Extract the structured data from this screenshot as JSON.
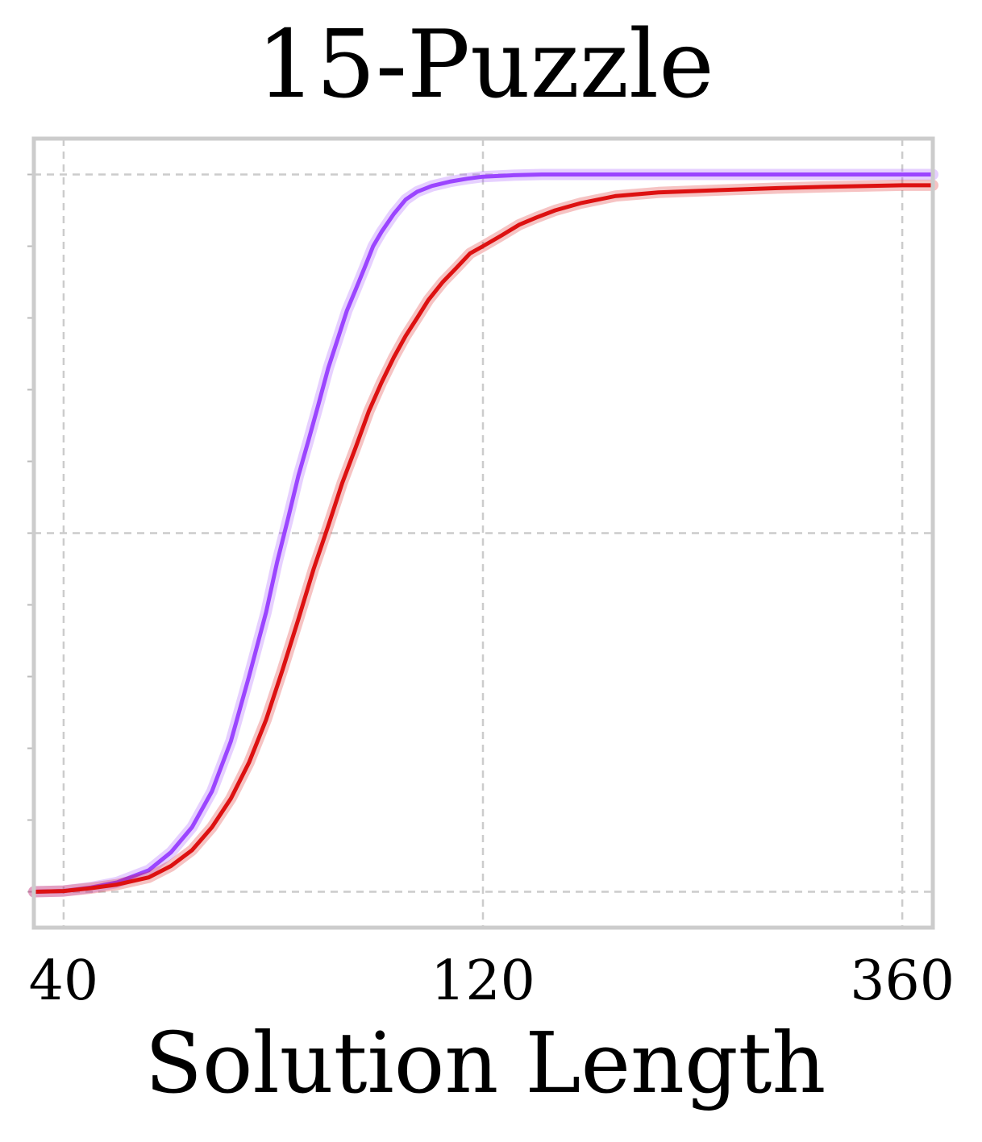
{
  "chart_data": {
    "type": "line",
    "title": "15-Puzzle",
    "xlabel": "Solution Length",
    "ylabel": "",
    "x_scale": "log",
    "xlim": [
      37,
      390
    ],
    "ylim": [
      -0.05,
      1.05
    ],
    "x_ticks": [
      40,
      120,
      360
    ],
    "x_tick_labels": [
      "40",
      "120",
      "360"
    ],
    "y_ticks": [
      0,
      0.1,
      0.2,
      0.3,
      0.4,
      0.5,
      0.6,
      0.7,
      0.8,
      0.9,
      1.0
    ],
    "grid": true,
    "legend": "none",
    "series": [
      {
        "color": "#9b45ff",
        "x": [
          37,
          40,
          43,
          46,
          50,
          53,
          56,
          59,
          62,
          65,
          68,
          70,
          72,
          74,
          76,
          78,
          80,
          82,
          84,
          86,
          88,
          90,
          92,
          95,
          98,
          101,
          105,
          110,
          115,
          120,
          130,
          140,
          160,
          200,
          260,
          360,
          390
        ],
        "y": [
          0.0,
          0.001,
          0.006,
          0.013,
          0.03,
          0.055,
          0.09,
          0.14,
          0.21,
          0.3,
          0.39,
          0.46,
          0.52,
          0.58,
          0.63,
          0.68,
          0.73,
          0.77,
          0.81,
          0.84,
          0.87,
          0.9,
          0.92,
          0.945,
          0.965,
          0.976,
          0.984,
          0.99,
          0.994,
          0.997,
          0.999,
          1.0,
          1.0,
          1.0,
          1.0,
          1.0,
          1.0
        ]
      },
      {
        "color": "#dd1111",
        "x": [
          37,
          40,
          43,
          46,
          50,
          53,
          56,
          59,
          62,
          65,
          68,
          71,
          74,
          77,
          80,
          83,
          86,
          89,
          92,
          95,
          98,
          101,
          104,
          108,
          112,
          116,
          120,
          126,
          132,
          138,
          145,
          155,
          170,
          190,
          220,
          260,
          300,
          360,
          390
        ],
        "y": [
          0.0,
          0.001,
          0.005,
          0.01,
          0.02,
          0.036,
          0.058,
          0.09,
          0.13,
          0.18,
          0.24,
          0.31,
          0.38,
          0.45,
          0.51,
          0.57,
          0.62,
          0.67,
          0.71,
          0.745,
          0.775,
          0.8,
          0.825,
          0.85,
          0.87,
          0.89,
          0.9,
          0.915,
          0.93,
          0.94,
          0.95,
          0.96,
          0.97,
          0.975,
          0.978,
          0.981,
          0.983,
          0.985,
          0.985
        ]
      }
    ]
  }
}
